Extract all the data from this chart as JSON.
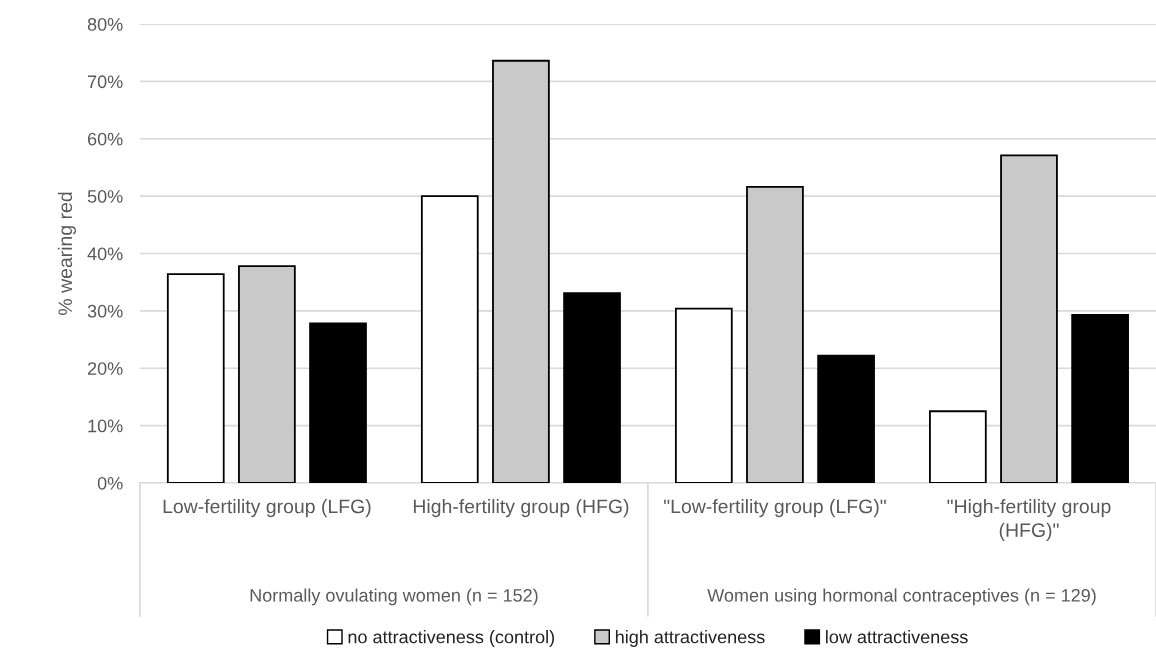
{
  "chart_data": {
    "type": "bar",
    "ylabel": "% wearing red",
    "categories": [
      "Low-fertility group (LFG)",
      "High-fertility group (HFG)",
      "\"Low-fertility group (LFG)\"",
      "\"High-fertility group (HFG)\""
    ],
    "series": [
      {
        "name": "no attractiveness (control)",
        "color": "#ffffff",
        "values": [
          36.4,
          50.0,
          30.4,
          12.5
        ]
      },
      {
        "name": "high attractiveness",
        "color": "#c9c9c9",
        "values": [
          37.8,
          73.6,
          51.6,
          57.1
        ]
      },
      {
        "name": "low attractiveness",
        "color": "#000000",
        "values": [
          27.8,
          33.1,
          22.2,
          29.3
        ]
      }
    ],
    "ylim": [
      0,
      80
    ],
    "yticks": [
      {
        "value": 0,
        "label": "0%"
      },
      {
        "value": 10,
        "label": "10%"
      },
      {
        "value": 20,
        "label": "20%"
      },
      {
        "value": 30,
        "label": "30%"
      },
      {
        "value": 40,
        "label": "40%"
      },
      {
        "value": 50,
        "label": "50%"
      },
      {
        "value": 60,
        "label": "60%"
      },
      {
        "value": 70,
        "label": "70%"
      },
      {
        "value": 80,
        "label": "80%"
      }
    ],
    "annotations": [
      "Normally ovulating women (n = 152)",
      "Women using hormonal contraceptives (n = 129)"
    ],
    "grid": "y",
    "legend": "bottom"
  }
}
